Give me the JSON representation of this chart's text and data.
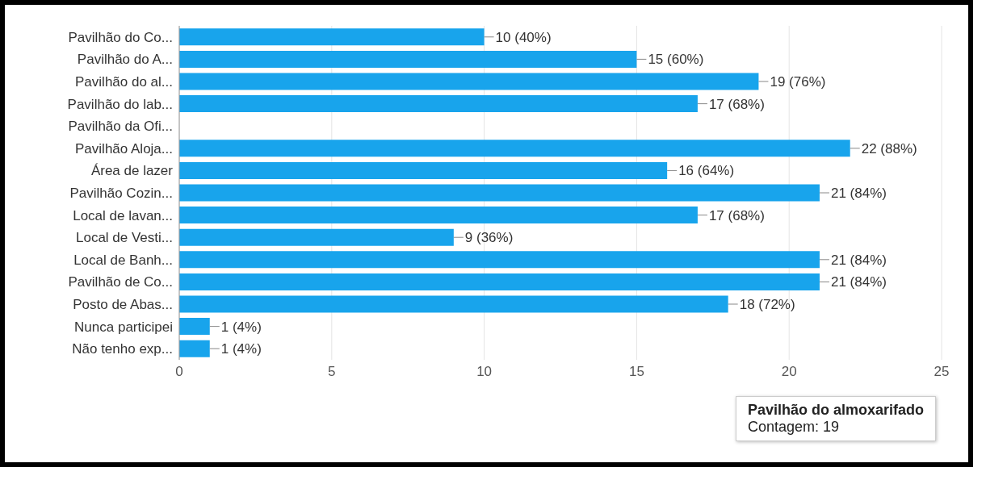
{
  "chart_data": {
    "type": "bar",
    "orientation": "horizontal",
    "categories": [
      "Pavilhão do Co...",
      "Pavilhão do A...",
      "Pavilhão do al...",
      "Pavilhão do lab...",
      "Pavilhão da Ofi...",
      "Pavilhão Aloja...",
      "Área de lazer",
      "Pavilhão Cozin...",
      "Local de lavan...",
      "Local de Vesti...",
      "Local de Banh...",
      "Pavilhão de Co...",
      "Posto de Abas...",
      "Nunca participei",
      "Não tenho exp..."
    ],
    "values": [
      10,
      15,
      19,
      17,
      null,
      22,
      16,
      21,
      17,
      9,
      21,
      21,
      18,
      1,
      1
    ],
    "value_labels": [
      "10 (40%)",
      "15 (60%)",
      "19 (76%)",
      "17 (68%)",
      null,
      "22 (88%)",
      "16 (64%)",
      "21 (84%)",
      "17 (68%)",
      "9 (36%)",
      "21 (84%)",
      "21 (84%)",
      "18 (72%)",
      "1 (4%)",
      "1 (4%)"
    ],
    "color": "#18a4ec",
    "xlim": [
      0,
      25
    ],
    "xticks": [
      0,
      5,
      10,
      15,
      20,
      25
    ],
    "grid": "x",
    "annotations": [
      "Pavilhão do almoxarifado\nContagem: 19"
    ]
  }
}
